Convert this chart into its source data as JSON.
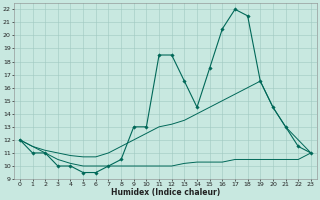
{
  "xlabel": "Humidex (Indice chaleur)",
  "background_color": "#c8e8e0",
  "grid_color": "#a0c8c0",
  "line_color": "#006858",
  "xlim": [
    -0.5,
    23.5
  ],
  "ylim": [
    9,
    22.5
  ],
  "xticks": [
    0,
    1,
    2,
    3,
    4,
    5,
    6,
    7,
    8,
    9,
    10,
    11,
    12,
    13,
    14,
    15,
    16,
    17,
    18,
    19,
    20,
    21,
    22,
    23
  ],
  "yticks": [
    9,
    10,
    11,
    12,
    13,
    14,
    15,
    16,
    17,
    18,
    19,
    20,
    21,
    22
  ],
  "line1_x": [
    0,
    1,
    2,
    3,
    4,
    5,
    6,
    7,
    8,
    9,
    10,
    11,
    12,
    13,
    14,
    15,
    16,
    17,
    18,
    19,
    20,
    21,
    22,
    23
  ],
  "line1_y": [
    12,
    11,
    11,
    10,
    10,
    9.5,
    9.5,
    10,
    10.5,
    13,
    13,
    18.5,
    18.5,
    16.5,
    14.5,
    17.5,
    20.5,
    22,
    21.5,
    16.5,
    14.5,
    13,
    11.5,
    11
  ],
  "line2_x": [
    0,
    1,
    2,
    3,
    4,
    5,
    6,
    7,
    8,
    9,
    10,
    11,
    12,
    13,
    14,
    15,
    16,
    17,
    18,
    19,
    20,
    21,
    22,
    23
  ],
  "line2_y": [
    12,
    11.5,
    11.2,
    11.0,
    10.8,
    10.7,
    10.7,
    11.0,
    11.5,
    12.0,
    12.5,
    13.0,
    13.2,
    13.5,
    14.0,
    14.5,
    15.0,
    15.5,
    16.0,
    16.5,
    14.5,
    13.0,
    12.0,
    11.0
  ],
  "line3_x": [
    0,
    1,
    2,
    3,
    4,
    5,
    6,
    7,
    8,
    9,
    10,
    11,
    12,
    13,
    14,
    15,
    16,
    17,
    18,
    19,
    20,
    21,
    22,
    23
  ],
  "line3_y": [
    12,
    11.5,
    11.0,
    10.5,
    10.2,
    10.0,
    10.0,
    10.0,
    10.0,
    10.0,
    10.0,
    10.0,
    10.0,
    10.2,
    10.3,
    10.3,
    10.3,
    10.5,
    10.5,
    10.5,
    10.5,
    10.5,
    10.5,
    11.0
  ]
}
